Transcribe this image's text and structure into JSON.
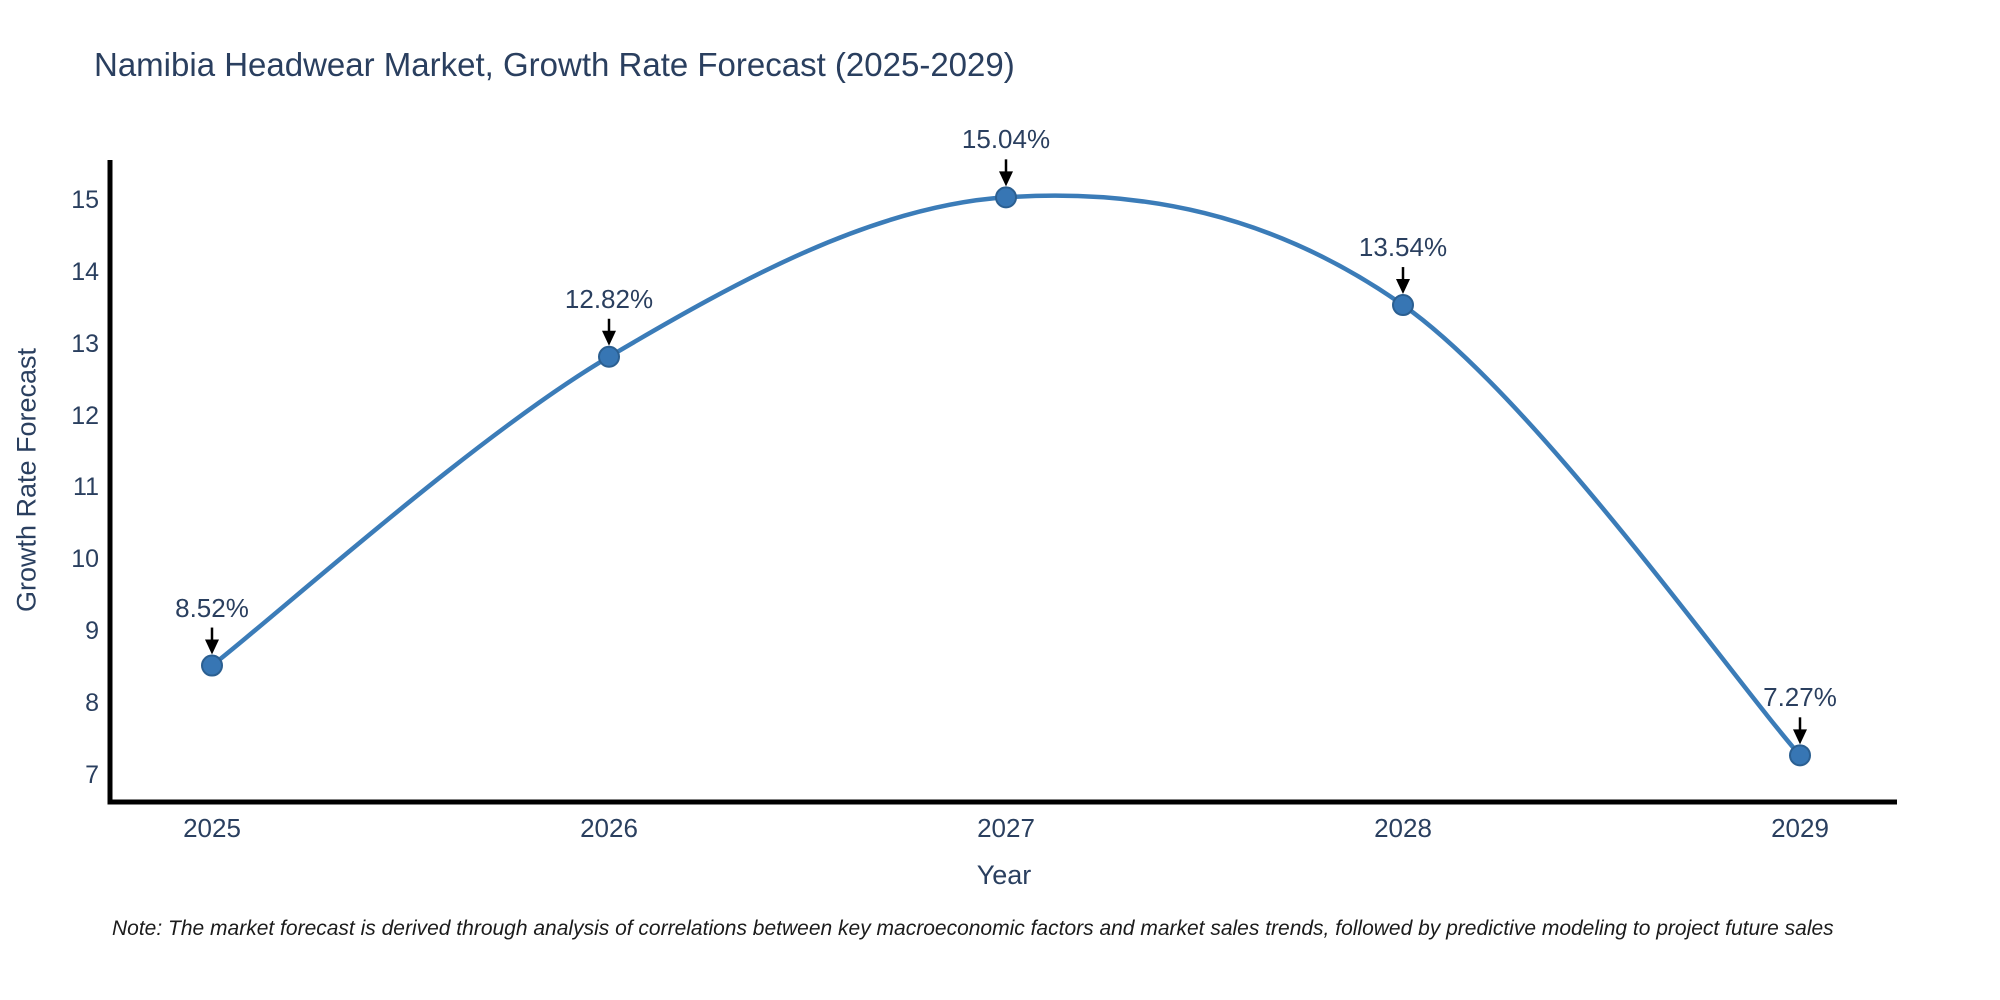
{
  "title": {
    "text": "Namibia Headwear Market, Growth Rate Forecast (2025-2029)"
  },
  "note": {
    "text": "Note: The market forecast is derived through analysis of correlations between key macroeconomic factors and market sales trends, followed by predictive modeling to project future sales"
  },
  "chart_data": {
    "type": "line",
    "line_shape": "spline",
    "title": "Namibia Headwear Market, Growth Rate Forecast (2025-2029)",
    "xlabel": "Year",
    "ylabel": "Growth Rate Forecast",
    "categories": [
      "2025",
      "2026",
      "2027",
      "2028",
      "2029"
    ],
    "values": [
      8.52,
      12.82,
      15.04,
      13.54,
      7.27
    ],
    "point_labels": [
      "8.52%",
      "12.82%",
      "15.04%",
      "13.54%",
      "7.27%"
    ],
    "yticks": [
      7,
      8,
      9,
      10,
      11,
      12,
      13,
      14,
      15
    ],
    "ylim": [
      6.62,
      15.56
    ],
    "grid": false,
    "legend": "none",
    "colors": {
      "line": "#3b7cb8",
      "marker": "#3776b4",
      "marker_edge": "#2b5f91",
      "axis": "#000000",
      "text": "#2a3f5f",
      "annotation_arrow": "#000000",
      "note_text": "#1b1b1b",
      "background": "#ffffff"
    }
  }
}
